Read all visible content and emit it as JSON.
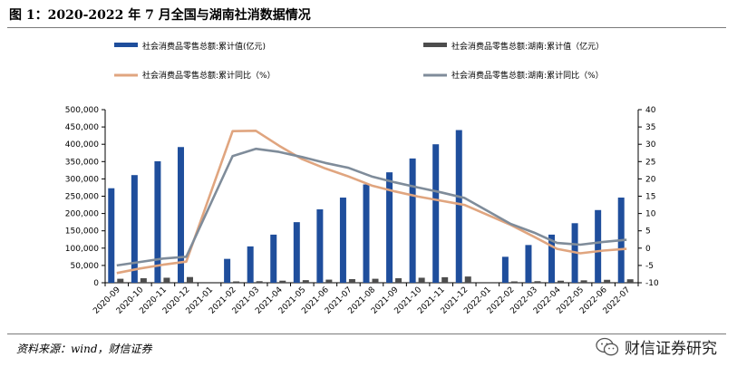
{
  "header": {
    "title": "图 1：2020-2022 年 7 月全国与湖南社消数据情况"
  },
  "footer": {
    "source": "资料来源：wind，财信证券",
    "brand": "财信证券研究"
  },
  "chart_data": {
    "type": "bar",
    "categories": [
      "2020-09",
      "2020-10",
      "2020-11",
      "2020-12",
      "2021-01",
      "2021-02",
      "2021-03",
      "2021-04",
      "2021-05",
      "2021-06",
      "2021-07",
      "2021-08",
      "2021-09",
      "2021-10",
      "2021-11",
      "2021-12",
      "2022-01",
      "2022-02",
      "2022-03",
      "2022-04",
      "2022-05",
      "2022-06",
      "2022-07"
    ],
    "left_axis": {
      "ylim": [
        0,
        500000
      ],
      "ticks": [
        "0",
        "50,000",
        "100,000",
        "150,000",
        "200,000",
        "250,000",
        "300,000",
        "350,000",
        "400,000",
        "450,000",
        "500,000"
      ]
    },
    "right_axis": {
      "ylim": [
        -10,
        40
      ],
      "ticks": [
        "-10",
        "-5",
        "0",
        "5",
        "10",
        "15",
        "20",
        "25",
        "30",
        "35",
        "40"
      ]
    },
    "series": [
      {
        "name": "社会消费品零售总额:累计值(亿元)",
        "kind": "bar",
        "axis": "left",
        "color": "#1f4e9c",
        "values": [
          273000,
          311000,
          351000,
          392000,
          null,
          69000,
          105000,
          139000,
          175000,
          212000,
          246000,
          284000,
          319000,
          359000,
          400000,
          441000,
          null,
          75000,
          109000,
          139000,
          172000,
          210000,
          246000
        ]
      },
      {
        "name": "社会消费品零售总额:湖南:累计值（亿元）",
        "kind": "bar",
        "axis": "left",
        "color": "#4d4d4d",
        "values": [
          11500,
          13000,
          14500,
          16500,
          null,
          3000,
          4500,
          6000,
          7500,
          9000,
          10500,
          11500,
          13000,
          14500,
          16000,
          18000,
          null,
          3000,
          4500,
          6000,
          7000,
          8500,
          10000
        ]
      },
      {
        "name": "社会消费品零售总额:累计同比（%）",
        "kind": "line",
        "axis": "right",
        "color": "#e0a57f",
        "values": [
          -7.2,
          -5.9,
          -4.8,
          -3.9,
          null,
          33.8,
          33.9,
          29.6,
          25.7,
          23.0,
          20.7,
          18.1,
          16.4,
          14.9,
          13.7,
          12.5,
          null,
          6.7,
          3.3,
          -0.2,
          -1.5,
          -0.7,
          -0.2
        ]
      },
      {
        "name": "社会消费品零售总额:湖南:累计同比（%）",
        "kind": "line",
        "axis": "right",
        "color": "#7f8c9a",
        "values": [
          -5.0,
          -4.0,
          -3.0,
          -2.5,
          null,
          26.6,
          28.7,
          27.8,
          26.3,
          24.6,
          23.2,
          20.7,
          19.0,
          17.5,
          16.1,
          14.5,
          null,
          7.0,
          4.5,
          1.5,
          1.0,
          1.8,
          2.4
        ]
      }
    ],
    "legend_position": "top",
    "grid": false
  }
}
